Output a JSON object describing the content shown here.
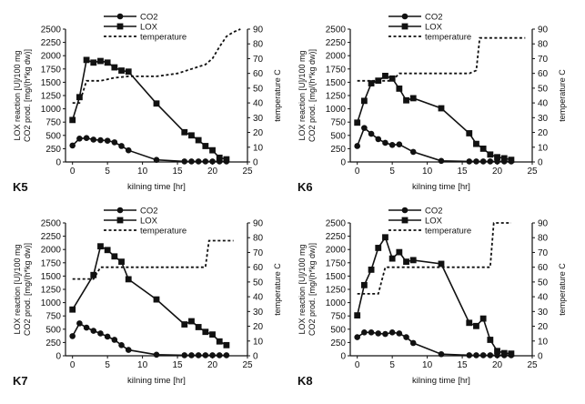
{
  "chart_data": [
    {
      "type": "line",
      "panel_label": "K5",
      "xlabel": "kilning time [hr]",
      "ylabel_left_line1": "LOX reaction [U]/100 mg",
      "ylabel_left_line2": "CO2 prod. [mg/(h*kg dw)]",
      "ylabel_right": "temperature C",
      "xlim": [
        -1,
        25
      ],
      "ylim_left": [
        0,
        2500
      ],
      "ylim_right": [
        0,
        90
      ],
      "x_ticks": [
        0,
        5,
        10,
        15,
        20,
        25
      ],
      "y_left_ticks": [
        0,
        250,
        500,
        750,
        1000,
        1250,
        1500,
        1750,
        2000,
        2250,
        2500
      ],
      "y_right_ticks": [
        0,
        10,
        20,
        30,
        40,
        50,
        60,
        70,
        80,
        90
      ],
      "legend": [
        "CO2",
        "LOX",
        "temperature"
      ],
      "series": [
        {
          "name": "CO2",
          "marker": "circle",
          "x": [
            0,
            1,
            2,
            3,
            4,
            5,
            6,
            7,
            8,
            12,
            16,
            17,
            18,
            19,
            20,
            21,
            22
          ],
          "values": [
            310,
            440,
            450,
            420,
            410,
            400,
            370,
            300,
            220,
            40,
            10,
            10,
            10,
            10,
            10,
            10,
            10
          ]
        },
        {
          "name": "LOX",
          "marker": "square",
          "x": [
            0,
            1,
            2,
            3,
            4,
            5,
            6,
            7,
            8,
            12,
            16,
            17,
            18,
            19,
            20,
            21,
            22
          ],
          "values": [
            790,
            1220,
            1920,
            1870,
            1900,
            1870,
            1780,
            1720,
            1700,
            1100,
            560,
            500,
            410,
            300,
            220,
            80,
            50
          ]
        },
        {
          "name": "temperature",
          "style": "dotted",
          "axis": "right",
          "x": [
            0,
            1,
            2,
            4,
            6,
            8,
            10,
            12,
            15,
            17,
            19,
            20,
            21,
            22,
            23,
            24
          ],
          "values": [
            40,
            40,
            55,
            55,
            57,
            58,
            58,
            58,
            60,
            63,
            66,
            70,
            78,
            85,
            88,
            90
          ]
        }
      ]
    },
    {
      "type": "line",
      "panel_label": "K6",
      "xlabel": "kilning time [hr]",
      "ylabel_left_line1": "LOX reaction [U]/100 mg",
      "ylabel_left_line2": "CO2 prod. [mg/(h*kg dw)]",
      "ylabel_right": "temperature C",
      "xlim": [
        -1,
        25
      ],
      "ylim_left": [
        0,
        2500
      ],
      "ylim_right": [
        0,
        90
      ],
      "x_ticks": [
        0,
        5,
        10,
        15,
        20,
        25
      ],
      "y_left_ticks": [
        0,
        250,
        500,
        750,
        1000,
        1250,
        1500,
        1750,
        2000,
        2250,
        2500
      ],
      "y_right_ticks": [
        0,
        10,
        20,
        30,
        40,
        50,
        60,
        70,
        80,
        90
      ],
      "legend": [
        "CO2",
        "LOX",
        "temperature"
      ],
      "series": [
        {
          "name": "CO2",
          "marker": "circle",
          "x": [
            0,
            1,
            2,
            3,
            4,
            5,
            6,
            8,
            12,
            16,
            17,
            18,
            19,
            20,
            21,
            22
          ],
          "values": [
            300,
            640,
            530,
            430,
            360,
            320,
            330,
            190,
            20,
            10,
            10,
            10,
            10,
            10,
            10,
            10
          ]
        },
        {
          "name": "LOX",
          "marker": "square",
          "x": [
            0,
            1,
            2,
            3,
            4,
            5,
            6,
            7,
            8,
            12,
            16,
            17,
            18,
            19,
            20,
            21,
            22
          ],
          "values": [
            740,
            1150,
            1480,
            1530,
            1620,
            1570,
            1380,
            1160,
            1200,
            1010,
            540,
            340,
            250,
            140,
            90,
            70,
            40
          ]
        },
        {
          "name": "temperature",
          "style": "dotted",
          "axis": "right",
          "x": [
            0,
            5,
            6,
            8,
            16,
            17,
            17.5,
            24
          ],
          "values": [
            55,
            55,
            60,
            60,
            60,
            62,
            84,
            84
          ]
        }
      ]
    },
    {
      "type": "line",
      "panel_label": "K7",
      "xlabel": "kilning time [hr]",
      "ylabel_left_line1": "LOX reaction [U]/100 mg",
      "ylabel_left_line2": "CO2 prod. [mg/(h*kg dw)]",
      "ylabel_right": "temperature C",
      "xlim": [
        -1,
        25
      ],
      "ylim_left": [
        0,
        2500
      ],
      "ylim_right": [
        0,
        90
      ],
      "x_ticks": [
        0,
        5,
        10,
        15,
        20,
        25
      ],
      "y_left_ticks": [
        0,
        250,
        500,
        750,
        1000,
        1250,
        1500,
        1750,
        2000,
        2250,
        2500
      ],
      "y_right_ticks": [
        0,
        10,
        20,
        30,
        40,
        50,
        60,
        70,
        80,
        90
      ],
      "legend": [
        "CO2",
        "LOX",
        "temperature"
      ],
      "series": [
        {
          "name": "CO2",
          "marker": "circle",
          "x": [
            0,
            1,
            2,
            3,
            4,
            5,
            6,
            7,
            8,
            12,
            16,
            17,
            18,
            19,
            20,
            21,
            22
          ],
          "values": [
            370,
            610,
            530,
            470,
            420,
            360,
            300,
            200,
            110,
            20,
            10,
            10,
            10,
            10,
            10,
            10,
            10
          ]
        },
        {
          "name": "LOX",
          "marker": "square",
          "x": [
            0,
            3,
            4,
            5,
            6,
            7,
            8,
            12,
            16,
            17,
            18,
            19,
            20,
            21,
            22
          ],
          "values": [
            870,
            1520,
            2060,
            1990,
            1870,
            1770,
            1440,
            1060,
            590,
            650,
            540,
            450,
            400,
            270,
            200
          ]
        },
        {
          "name": "temperature",
          "style": "dotted",
          "axis": "right",
          "x": [
            0,
            3,
            4,
            19,
            19.5,
            23
          ],
          "values": [
            52,
            52,
            60,
            60,
            78,
            78
          ]
        }
      ]
    },
    {
      "type": "line",
      "panel_label": "K8",
      "xlabel": "kilning time [hr]",
      "ylabel_left_line1": "LOX reaction [U]/100 mg",
      "ylabel_left_line2": "CO2 prod. [mg/(h*kg dw)]",
      "ylabel_right": "temperature C",
      "xlim": [
        -1,
        25
      ],
      "ylim_left": [
        0,
        2500
      ],
      "ylim_right": [
        0,
        90
      ],
      "x_ticks": [
        0,
        5,
        10,
        15,
        20,
        25
      ],
      "y_left_ticks": [
        0,
        250,
        500,
        750,
        1000,
        1250,
        1500,
        1750,
        2000,
        2250,
        2500
      ],
      "y_right_ticks": [
        0,
        10,
        20,
        30,
        40,
        50,
        60,
        70,
        80,
        90
      ],
      "legend": [
        "CO2",
        "LOX",
        "temperature"
      ],
      "series": [
        {
          "name": "CO2",
          "marker": "circle",
          "x": [
            0,
            1,
            2,
            3,
            4,
            5,
            6,
            7,
            8,
            12,
            16,
            17,
            18,
            19,
            20,
            21,
            22
          ],
          "values": [
            350,
            440,
            440,
            420,
            410,
            440,
            420,
            350,
            240,
            30,
            10,
            10,
            10,
            10,
            10,
            10,
            10
          ]
        },
        {
          "name": "LOX",
          "marker": "square",
          "x": [
            0,
            1,
            2,
            3,
            4,
            5,
            6,
            7,
            8,
            12,
            16,
            17,
            18,
            19,
            20,
            21,
            22
          ],
          "values": [
            760,
            1330,
            1620,
            2030,
            2230,
            1830,
            1950,
            1770,
            1800,
            1730,
            620,
            560,
            700,
            300,
            90,
            50,
            40
          ]
        },
        {
          "name": "temperature",
          "style": "dotted",
          "axis": "right",
          "x": [
            0,
            1,
            3,
            4,
            19,
            19.5,
            22
          ],
          "values": [
            42,
            42,
            42,
            60,
            60,
            90,
            90
          ]
        }
      ]
    }
  ]
}
